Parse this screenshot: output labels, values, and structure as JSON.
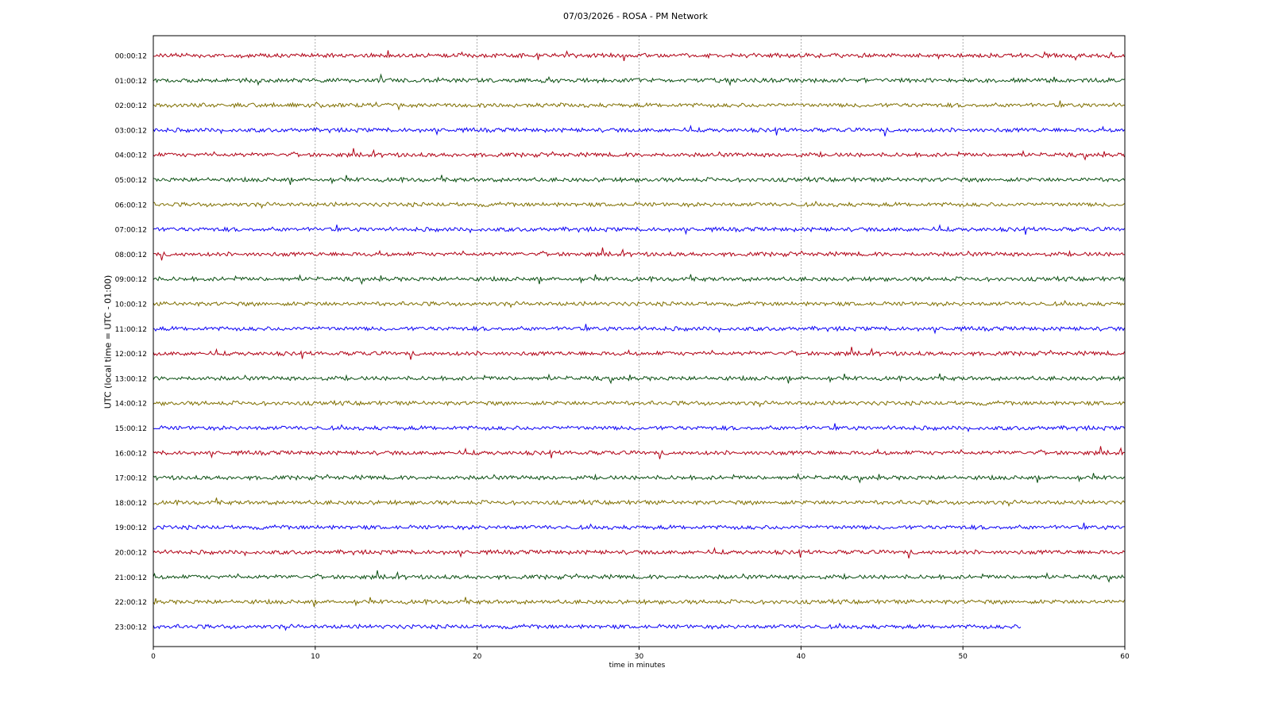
{
  "chart_data": {
    "type": "line",
    "title": "07/03/2026 - ROSA - PM Network",
    "xlabel": "time in minutes",
    "ylabel": "UTC (local time = UTC - 01:00)",
    "xlim": [
      0,
      60
    ],
    "x_ticks": [
      0,
      10,
      20,
      30,
      40,
      50,
      60
    ],
    "grid": "vertical dashed at x ticks",
    "row_labels": [
      "00:00:12",
      "01:00:12",
      "02:00:12",
      "03:00:12",
      "04:00:12",
      "05:00:12",
      "06:00:12",
      "07:00:12",
      "08:00:12",
      "09:00:12",
      "10:00:12",
      "11:00:12",
      "12:00:12",
      "13:00:12",
      "14:00:12",
      "15:00:12",
      "16:00:12",
      "17:00:12",
      "18:00:12",
      "19:00:12",
      "20:00:12",
      "21:00:12",
      "22:00:12",
      "23:00:12"
    ],
    "colors": [
      "#b00014",
      "#0b4f12",
      "#7f6f00",
      "#0a00f5"
    ],
    "series_end_minutes": [
      60,
      60,
      60,
      60,
      60,
      60,
      60,
      60,
      60,
      60,
      60,
      60,
      60,
      60,
      60,
      60,
      60,
      60,
      60,
      60,
      60,
      60,
      60,
      53.6
    ]
  }
}
